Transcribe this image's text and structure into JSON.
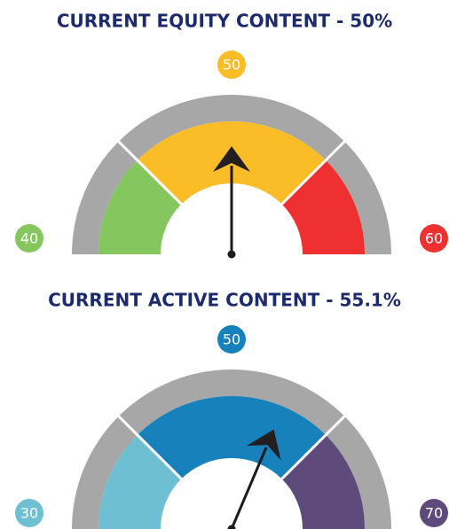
{
  "chart_data": [
    {
      "type": "gauge",
      "title": "CURRENT EQUITY CONTENT - 50%",
      "value": 50,
      "ylim": [
        40,
        60
      ],
      "yticks": [
        40,
        50,
        60
      ],
      "colors": [
        "#86c65f",
        "#fbbd27",
        "#ee3130"
      ]
    },
    {
      "type": "gauge",
      "title": "CURRENT ACTIVE CONTENT - 55.1%",
      "value": 55.1,
      "ylim": [
        30,
        70
      ],
      "yticks": [
        30,
        50,
        70
      ],
      "colors": [
        "#6fbfd3",
        "#1681bb",
        "#5e4b7c"
      ]
    }
  ]
}
